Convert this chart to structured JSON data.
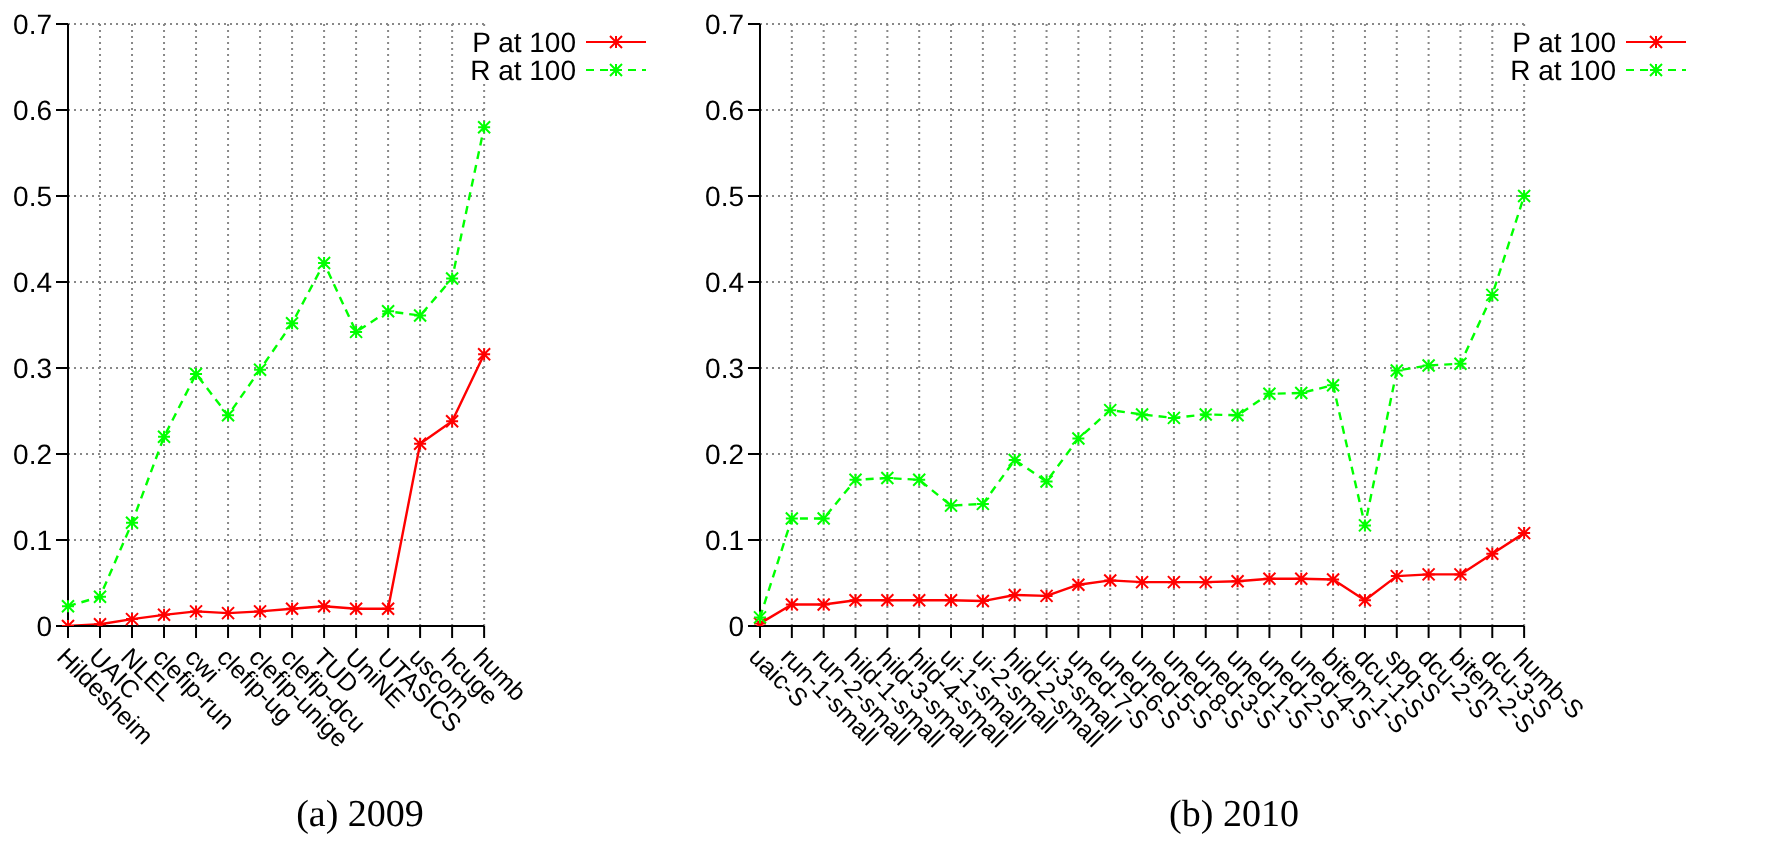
{
  "chart_data": [
    {
      "type": "line",
      "xlabel": "(a) 2009",
      "categories": [
        "Hildesheim",
        "UAIC",
        "NLEL",
        "clefip-run",
        "cwi",
        "clefip-ug",
        "clefip-unige",
        "clefip-dcu",
        "TUD",
        "UniNE",
        "UTASICS",
        "uscom",
        "hcuge",
        "humb"
      ],
      "series": [
        {
          "name": "P at 100",
          "color": "#ff0000",
          "line_style": "solid",
          "values": [
            0,
            0.002,
            0.008,
            0.013,
            0.017,
            0.015,
            0.017,
            0.02,
            0.023,
            0.02,
            0.02,
            0.212,
            0.238,
            0.316
          ]
        },
        {
          "name": "R at 100",
          "color": "#00ff00",
          "line_style": "dashed",
          "values": [
            0.023,
            0.034,
            0.12,
            0.22,
            0.293,
            0.245,
            0.298,
            0.352,
            0.422,
            0.342,
            0.366,
            0.361,
            0.404,
            0.58
          ]
        }
      ],
      "ylim": [
        0,
        0.7
      ],
      "yticks": [
        0,
        0.1,
        0.2,
        0.3,
        0.4,
        0.5,
        0.6,
        0.7
      ],
      "grid": true,
      "legend": "top right",
      "marker": "cross"
    },
    {
      "type": "line",
      "xlabel": "(b) 2010",
      "categories": [
        "uaic-S",
        "run-1-small",
        "run-2-small",
        "hild-1-small",
        "hild-3-small",
        "hild-4-small",
        "ui-1-small",
        "ui-2-small",
        "hild-2-small",
        "ui-3-small",
        "uned-7-S",
        "uned-6-S",
        "uned-5-S",
        "uned-8-S",
        "uned-3-S",
        "uned-1-S",
        "uned-2-S",
        "uned-4-S",
        "bitem-1-S",
        "dcu-1-S",
        "spq-S",
        "dcu-2-S",
        "bitem-2-S",
        "dcu-3-S",
        "humb-S"
      ],
      "series": [
        {
          "name": "P at 100",
          "color": "#ff0000",
          "line_style": "solid",
          "values": [
            0.003,
            0.025,
            0.025,
            0.03,
            0.03,
            0.03,
            0.03,
            0.029,
            0.036,
            0.035,
            0.048,
            0.053,
            0.051,
            0.051,
            0.051,
            0.052,
            0.055,
            0.055,
            0.054,
            0.03,
            0.058,
            0.06,
            0.06,
            0.084,
            0.108
          ]
        },
        {
          "name": "R at 100",
          "color": "#00ff00",
          "line_style": "dashed",
          "values": [
            0.01,
            0.125,
            0.125,
            0.17,
            0.172,
            0.17,
            0.14,
            0.142,
            0.193,
            0.168,
            0.218,
            0.251,
            0.246,
            0.242,
            0.246,
            0.245,
            0.27,
            0.271,
            0.28,
            0.117,
            0.297,
            0.303,
            0.305,
            0.385,
            0.5
          ]
        }
      ],
      "ylim": [
        0,
        0.7
      ],
      "yticks": [
        0,
        0.1,
        0.2,
        0.3,
        0.4,
        0.5,
        0.6,
        0.7
      ],
      "grid": true,
      "legend": "top right",
      "marker": "cross"
    }
  ]
}
